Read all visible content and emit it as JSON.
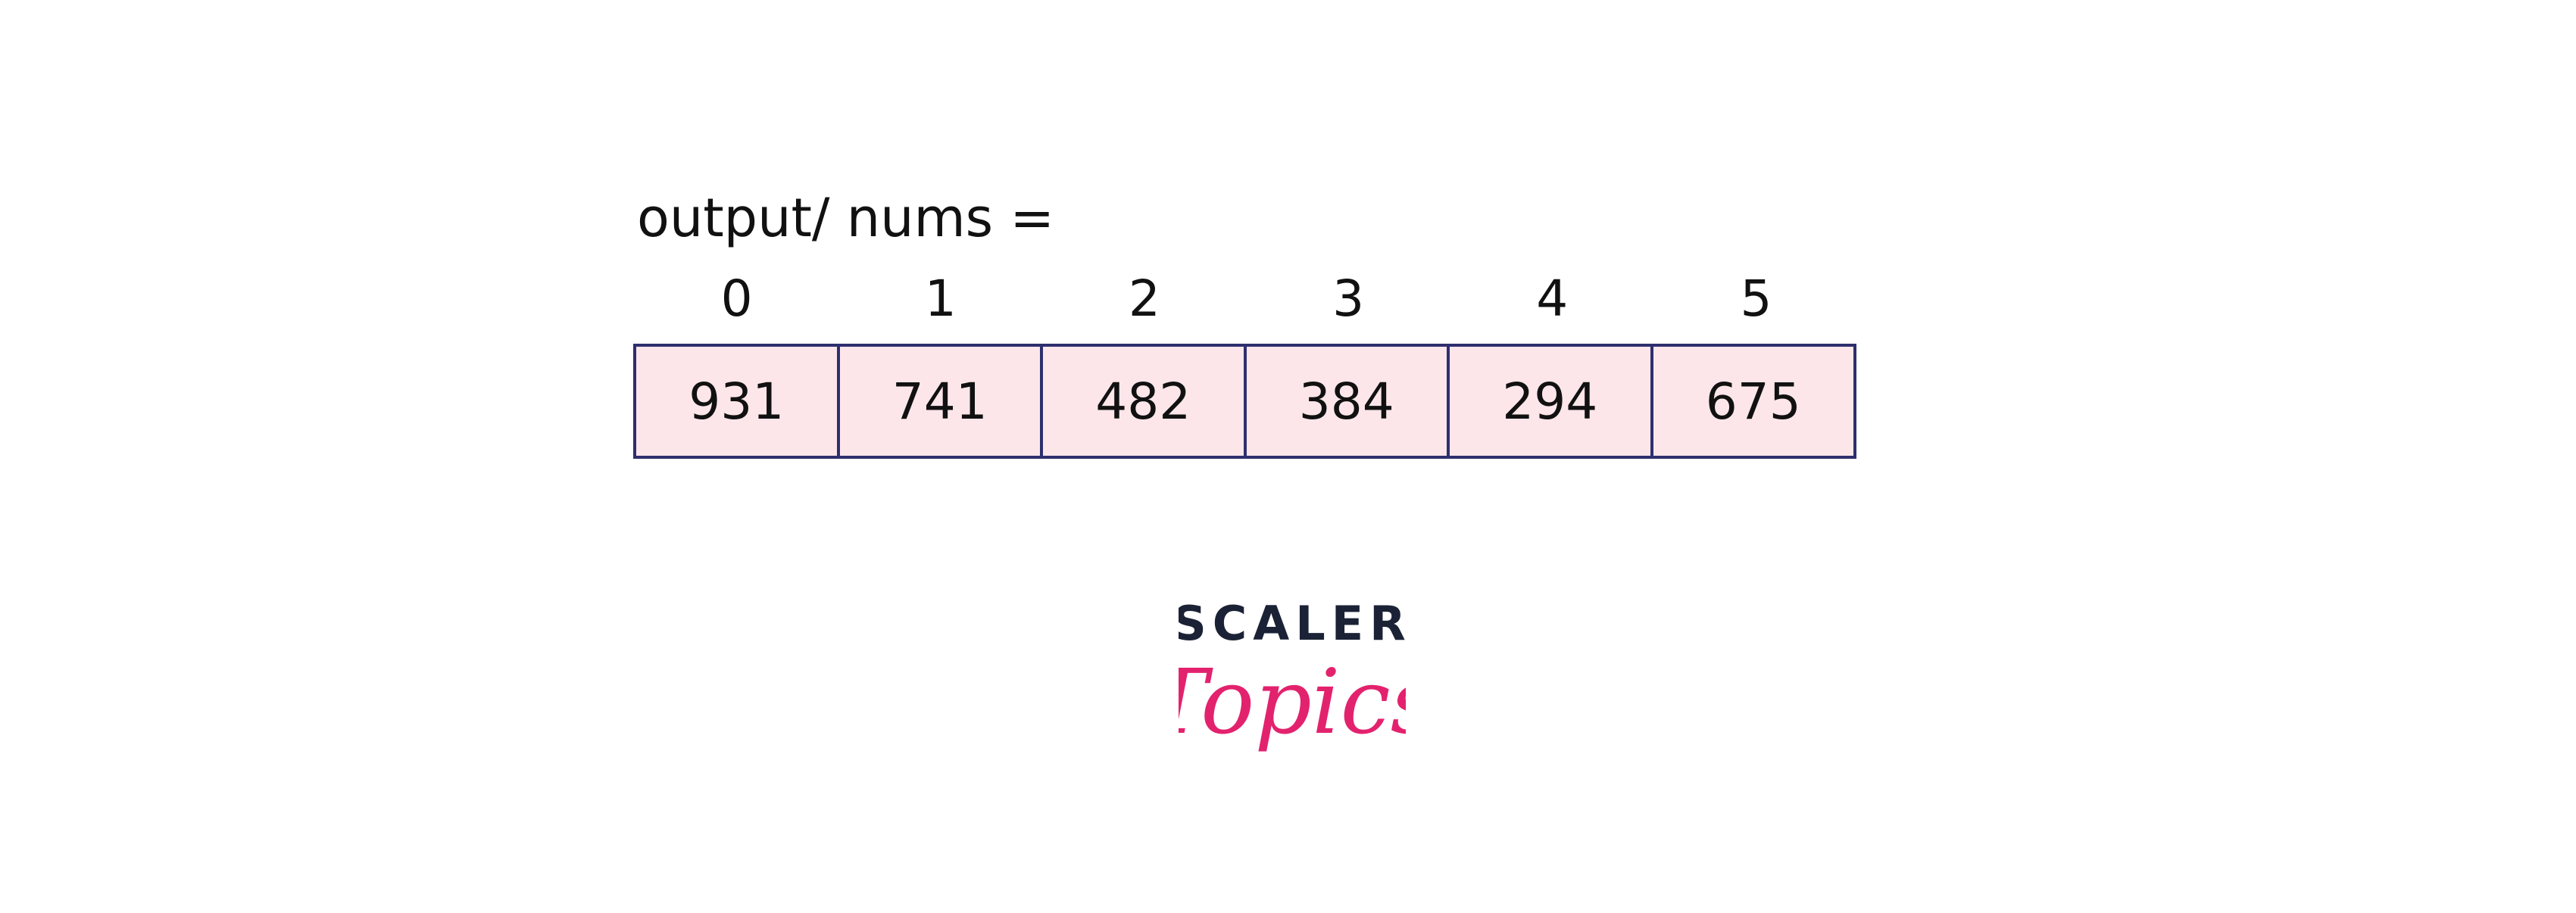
{
  "array": {
    "label": "output/ nums =",
    "indices": [
      "0",
      "1",
      "2",
      "3",
      "4",
      "5"
    ],
    "values": [
      "931",
      "741",
      "482",
      "384",
      "294",
      "675"
    ]
  },
  "logo": {
    "top_text": "SCALER",
    "script_text": "Topics",
    "top_color": "#1b2236",
    "script_color": "#e3226e"
  },
  "colors": {
    "cell_fill": "#fde6ea",
    "cell_border": "#2e2f6e"
  }
}
